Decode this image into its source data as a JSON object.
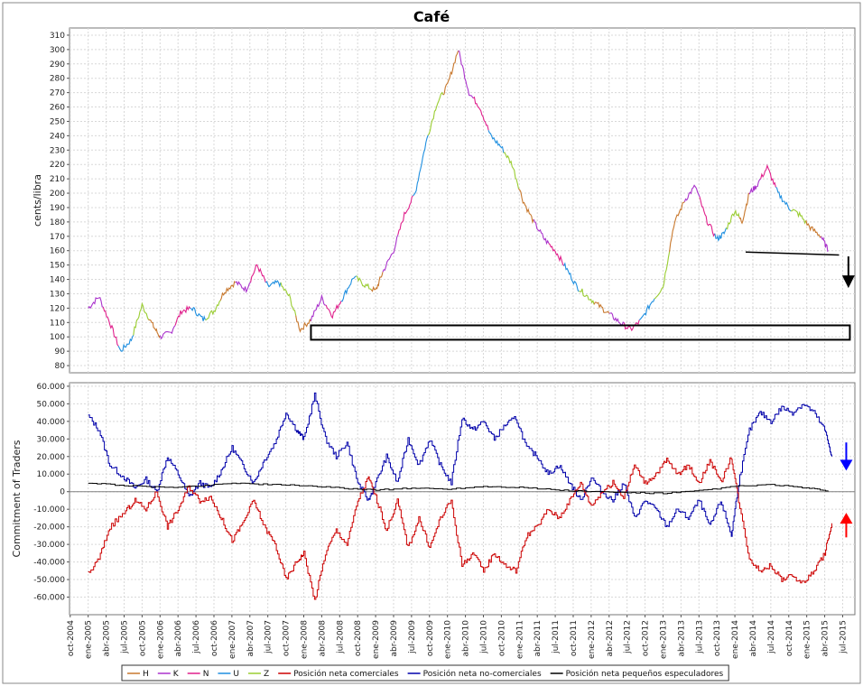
{
  "chart_data": [
    {
      "id": "price",
      "type": "line",
      "title": "Café",
      "ylabel": "cents/libra",
      "ylim": [
        75,
        315
      ],
      "y_ticks": [
        80,
        90,
        100,
        110,
        120,
        130,
        140,
        150,
        160,
        170,
        180,
        190,
        200,
        210,
        220,
        230,
        240,
        250,
        260,
        270,
        280,
        290,
        300,
        310
      ],
      "xlim": [
        2004.74,
        2015.67
      ],
      "colors": {
        "H": "#c8782d",
        "K": "#aa33cc",
        "N": "#e0208c",
        "U": "#1f8fe0",
        "Z": "#9acd32"
      },
      "contracts": [
        "H",
        "K",
        "N",
        "U",
        "Z"
      ],
      "contract_start_index": 1,
      "segment_size": 14,
      "series": [
        {
          "name": "price",
          "x": [
            2005.0,
            2005.15,
            2005.3,
            2005.45,
            2005.6,
            2005.75,
            2005.9,
            2006.0,
            2006.15,
            2006.3,
            2006.45,
            2006.6,
            2006.75,
            2006.9,
            2007.05,
            2007.2,
            2007.35,
            2007.5,
            2007.65,
            2007.8,
            2007.95,
            2008.1,
            2008.25,
            2008.4,
            2008.55,
            2008.7,
            2008.85,
            2009.0,
            2009.1,
            2009.25,
            2009.4,
            2009.55,
            2009.7,
            2009.85,
            2010.0,
            2010.15,
            2010.3,
            2010.45,
            2010.6,
            2010.75,
            2010.9,
            2011.05,
            2011.2,
            2011.35,
            2011.5,
            2011.65,
            2011.8,
            2011.95,
            2012.1,
            2012.25,
            2012.4,
            2012.55,
            2012.7,
            2012.85,
            2013.0,
            2013.15,
            2013.3,
            2013.45,
            2013.6,
            2013.75,
            2013.85,
            2014.0,
            2014.1,
            2014.2,
            2014.3,
            2014.45,
            2014.6,
            2014.75,
            2014.9,
            2015.05,
            2015.2,
            2015.3
          ],
          "y": [
            120,
            128,
            110,
            90,
            98,
            122,
            108,
            100,
            103,
            118,
            120,
            112,
            118,
            132,
            138,
            133,
            150,
            135,
            138,
            128,
            105,
            112,
            127,
            115,
            128,
            142,
            136,
            132,
            145,
            160,
            185,
            200,
            235,
            262,
            275,
            300,
            270,
            260,
            240,
            232,
            220,
            195,
            180,
            168,
            160,
            148,
            135,
            128,
            122,
            116,
            110,
            105,
            112,
            125,
            135,
            178,
            195,
            205,
            182,
            168,
            172,
            188,
            180,
            200,
            205,
            218,
            200,
            190,
            185,
            176,
            170,
            160
          ]
        }
      ],
      "annotations": {
        "trend_line": [
          [
            2014.15,
            159
          ],
          [
            2015.45,
            157
          ]
        ],
        "box": [
          [
            2008.1,
            98
          ],
          [
            2015.6,
            108
          ]
        ],
        "arrow": [
          [
            2015.58,
            156
          ],
          [
            2015.58,
            134
          ]
        ]
      }
    },
    {
      "id": "cot",
      "type": "line",
      "ylabel": "Commitment of Traders",
      "ylim": [
        -70000,
        62000
      ],
      "y_ticks": [
        -60000,
        -50000,
        -40000,
        -30000,
        -20000,
        -10000,
        0,
        10000,
        20000,
        30000,
        40000,
        50000,
        60000
      ],
      "y_tick_labels": [
        "-60.000",
        "-50.000",
        "-40.000",
        "-30.000",
        "-20.000",
        "-10.000",
        "0",
        "10.000",
        "20.000",
        "30.000",
        "40.000",
        "50.000",
        "60.000"
      ],
      "xlim": [
        2004.74,
        2015.67
      ],
      "x_ticks": [
        2004.75,
        2005.0,
        2005.25,
        2005.5,
        2005.75,
        2006.0,
        2006.25,
        2006.5,
        2006.75,
        2007.0,
        2007.25,
        2007.5,
        2007.75,
        2008.0,
        2008.25,
        2008.5,
        2008.75,
        2009.0,
        2009.25,
        2009.5,
        2009.75,
        2010.0,
        2010.25,
        2010.5,
        2010.75,
        2011.0,
        2011.25,
        2011.5,
        2011.75,
        2012.0,
        2012.25,
        2012.5,
        2012.75,
        2013.0,
        2013.25,
        2013.5,
        2013.75,
        2014.0,
        2014.25,
        2014.5,
        2014.75,
        2015.0,
        2015.25,
        2015.5
      ],
      "x_tick_labels": [
        "oct-2004",
        "ene-2005",
        "abr-2005",
        "jul-2005",
        "oct-2005",
        "ene-2006",
        "abr-2006",
        "jul-2006",
        "oct-2006",
        "ene-2007",
        "abr-2007",
        "jul-2007",
        "oct-2007",
        "ene-2008",
        "abr-2008",
        "jul-2008",
        "oct-2008",
        "ene-2009",
        "abr-2009",
        "jul-2009",
        "oct-2009",
        "ene-2010",
        "abr-2010",
        "jul-2010",
        "oct-2010",
        "ene-2011",
        "abr-2011",
        "jul-2011",
        "oct-2011",
        "ene-2012",
        "abr-2012",
        "jul-2012",
        "oct-2012",
        "ene-2013",
        "abr-2013",
        "jul-2013",
        "oct-2013",
        "ene-2014",
        "abr-2014",
        "jul-2014",
        "oct-2014",
        "ene-2015",
        "abr-2015",
        "jul-2015"
      ],
      "series": [
        {
          "name": "Posición neta no-comerciales",
          "color": "#0000aa",
          "x": [
            2005.0,
            2005.15,
            2005.3,
            2005.5,
            2005.65,
            2005.8,
            2005.95,
            2006.1,
            2006.25,
            2006.4,
            2006.55,
            2006.7,
            2006.85,
            2007.0,
            2007.15,
            2007.3,
            2007.45,
            2007.6,
            2007.75,
            2007.9,
            2008.0,
            2008.15,
            2008.3,
            2008.45,
            2008.6,
            2008.75,
            2008.9,
            2009.0,
            2009.15,
            2009.3,
            2009.45,
            2009.6,
            2009.75,
            2009.9,
            2010.05,
            2010.2,
            2010.35,
            2010.5,
            2010.65,
            2010.8,
            2010.95,
            2011.1,
            2011.25,
            2011.4,
            2011.55,
            2011.7,
            2011.85,
            2012.0,
            2012.15,
            2012.3,
            2012.45,
            2012.6,
            2012.75,
            2012.9,
            2013.05,
            2013.2,
            2013.35,
            2013.5,
            2013.65,
            2013.8,
            2013.95,
            2014.05,
            2014.2,
            2014.35,
            2014.5,
            2014.65,
            2014.8,
            2014.95,
            2015.1,
            2015.25,
            2015.35
          ],
          "y": [
            43000,
            35000,
            15000,
            8000,
            2000,
            7000,
            0,
            20000,
            10000,
            -3000,
            5000,
            2000,
            12000,
            25000,
            15000,
            5000,
            18000,
            28000,
            45000,
            35000,
            30000,
            55000,
            30000,
            20000,
            28000,
            5000,
            -5000,
            5000,
            20000,
            5000,
            30000,
            15000,
            30000,
            15000,
            5000,
            42000,
            35000,
            40000,
            30000,
            38000,
            42000,
            25000,
            20000,
            10000,
            15000,
            5000,
            -5000,
            8000,
            0,
            -5000,
            5000,
            -15000,
            -5000,
            -10000,
            -20000,
            -10000,
            -15000,
            -5000,
            -20000,
            -5000,
            -25000,
            5000,
            35000,
            45000,
            40000,
            48000,
            45000,
            50000,
            45000,
            35000,
            20000
          ]
        },
        {
          "name": "Posición neta comerciales",
          "color": "#cc0000",
          "x": [
            2005.0,
            2005.15,
            2005.3,
            2005.5,
            2005.65,
            2005.8,
            2005.95,
            2006.1,
            2006.25,
            2006.4,
            2006.55,
            2006.7,
            2006.85,
            2007.0,
            2007.15,
            2007.3,
            2007.45,
            2007.6,
            2007.75,
            2007.9,
            2008.0,
            2008.15,
            2008.3,
            2008.45,
            2008.6,
            2008.75,
            2008.9,
            2009.0,
            2009.15,
            2009.3,
            2009.45,
            2009.6,
            2009.75,
            2009.9,
            2010.05,
            2010.2,
            2010.35,
            2010.5,
            2010.65,
            2010.8,
            2010.95,
            2011.1,
            2011.25,
            2011.4,
            2011.55,
            2011.7,
            2011.85,
            2012.0,
            2012.15,
            2012.3,
            2012.45,
            2012.6,
            2012.75,
            2012.9,
            2013.05,
            2013.2,
            2013.35,
            2013.5,
            2013.65,
            2013.8,
            2013.95,
            2014.05,
            2014.2,
            2014.35,
            2014.5,
            2014.65,
            2014.8,
            2014.95,
            2015.1,
            2015.25,
            2015.35
          ],
          "y": [
            -47000,
            -38000,
            -20000,
            -12000,
            -5000,
            -10000,
            0,
            -20000,
            -10000,
            3000,
            -5000,
            -3000,
            -15000,
            -28000,
            -18000,
            -5000,
            -20000,
            -30000,
            -50000,
            -40000,
            -35000,
            -62000,
            -35000,
            -22000,
            -30000,
            -5000,
            8000,
            -3000,
            -22000,
            -5000,
            -32000,
            -15000,
            -32000,
            -15000,
            -5000,
            -42000,
            -35000,
            -45000,
            -35000,
            -42000,
            -45000,
            -25000,
            -20000,
            -10000,
            -15000,
            -5000,
            5000,
            -8000,
            0,
            5000,
            -3000,
            15000,
            5000,
            10000,
            18000,
            10000,
            15000,
            5000,
            18000,
            5000,
            20000,
            -5000,
            -38000,
            -45000,
            -42000,
            -50000,
            -48000,
            -52000,
            -45000,
            -35000,
            -18000
          ]
        },
        {
          "name": "Posición neta pequeños especuladores",
          "color": "#000000",
          "x": [
            2005.0,
            2005.5,
            2006.0,
            2006.5,
            2007.0,
            2007.5,
            2008.0,
            2008.5,
            2009.0,
            2009.5,
            2010.0,
            2010.5,
            2011.0,
            2011.5,
            2012.0,
            2012.5,
            2013.0,
            2013.5,
            2014.0,
            2014.5,
            2015.0,
            2015.3
          ],
          "y": [
            5000,
            3500,
            2500,
            3000,
            5000,
            4000,
            3500,
            2000,
            1000,
            2000,
            1500,
            3000,
            2500,
            1000,
            0,
            -500,
            -1000,
            500,
            3000,
            4000,
            2000,
            500
          ]
        }
      ],
      "arrows": [
        {
          "color": "#0000ff",
          "from": [
            2015.55,
            28000
          ],
          "to": [
            2015.55,
            12000
          ]
        },
        {
          "color": "#ff0000",
          "from": [
            2015.55,
            -26000
          ],
          "to": [
            2015.55,
            -12000
          ]
        }
      ]
    }
  ],
  "legend": [
    {
      "label": "H",
      "color": "#c8782d"
    },
    {
      "label": "K",
      "color": "#aa33cc"
    },
    {
      "label": "N",
      "color": "#e0208c"
    },
    {
      "label": "U",
      "color": "#1f8fe0"
    },
    {
      "label": "Z",
      "color": "#9acd32"
    },
    {
      "label": "Posición neta comerciales",
      "color": "#cc0000"
    },
    {
      "label": "Posición neta no-comerciales",
      "color": "#0000aa"
    },
    {
      "label": "Posición neta pequeños especuladores",
      "color": "#000000"
    }
  ]
}
